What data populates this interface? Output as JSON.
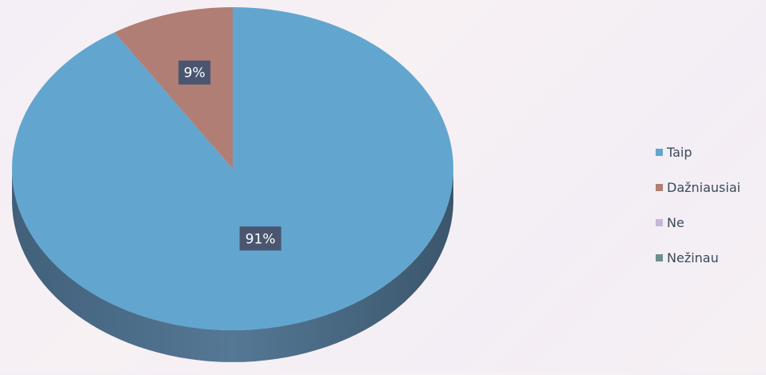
{
  "chart_data": {
    "type": "pie",
    "title": "",
    "categories": [
      "Taip",
      "Dažniausiai",
      "Ne",
      "Nežinau"
    ],
    "values": [
      91,
      9,
      0,
      0
    ],
    "labels": [
      "91%",
      "9%",
      "",
      ""
    ],
    "colors": [
      "#62a6cf",
      "#b07e74",
      "#c6b6d8",
      "#6e8f8c"
    ],
    "legend_position": "right",
    "style": "3d"
  }
}
